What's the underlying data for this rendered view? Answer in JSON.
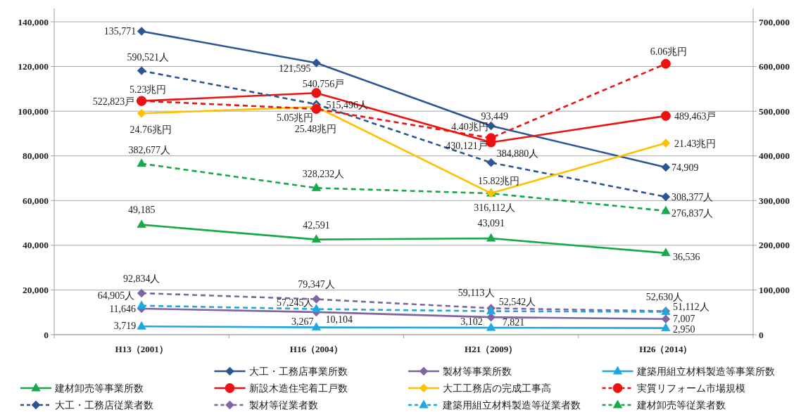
{
  "chart_data": [
    {
      "type": "line",
      "categories": [
        "H13（2001）",
        "H16（2004）",
        "H21（2009）",
        "H26（2014）"
      ],
      "ylim": [
        0,
        140000
      ],
      "yticks": [
        0,
        {
          "value": 20000,
          "label": "20,000"
        },
        {
          "value": 40000,
          "label": "40,000"
        },
        {
          "value": 60000,
          "label": "60,000"
        },
        {
          "value": 80000,
          "label": "80,000"
        },
        {
          "value": 100000,
          "label": "100,000"
        },
        {
          "value": 120000,
          "label": "120,000"
        },
        {
          "value": 140000,
          "label": "140,000"
        }
      ],
      "y2lim": [
        0,
        700000
      ],
      "y2ticks": [
        0,
        {
          "value": 100000,
          "label": "100,000"
        },
        {
          "value": 200000,
          "label": "200,000"
        },
        {
          "value": 300000,
          "label": "300,000"
        },
        {
          "value": 400000,
          "label": "400,000"
        },
        {
          "value": 500000,
          "label": "500,000"
        },
        {
          "value": 600000,
          "label": "600,000"
        },
        {
          "value": 700000,
          "label": "700,000"
        }
      ],
      "grid": "y",
      "legend": "bottom",
      "series": [
        {
          "name": "大工・工務店事業所数",
          "color": "#2c5593",
          "values": [
            135771,
            121595,
            93449,
            74909
          ],
          "value_labels": [
            "135,771",
            "121,595",
            "93,449",
            "74,909"
          ],
          "marker": "diamond",
          "line_style": "solid"
        },
        {
          "name": "製材等事業所数",
          "color": "#8064a2",
          "values": [
            11646,
            10104,
            7821,
            7007
          ],
          "value_labels": [
            "11,646",
            "10,104",
            "7,821",
            "7,007"
          ],
          "marker": "diamond",
          "line_style": "solid"
        },
        {
          "name": "建築用組立材料製造等事業所数",
          "color": "#1fa8e0",
          "values": [
            3719,
            3267,
            3102,
            2950
          ],
          "value_labels": [
            "3,719",
            "3,267",
            "3,102",
            "2,950"
          ],
          "marker": "triangle",
          "line_style": "solid"
        },
        {
          "name": "建材卸売等事業所数",
          "color": "#17a84a",
          "values": [
            49185,
            42591,
            43091,
            36536
          ],
          "value_labels": [
            "49,185",
            "42,591",
            "43,091",
            "36,536"
          ],
          "marker": "triangle",
          "line_style": "solid"
        },
        {
          "name": "新設木造住宅着工戸数",
          "color": "#ee1111",
          "axis": "y2",
          "values": [
            522823,
            540756,
            430121,
            489463
          ],
          "value_labels": [
            "522,823戸",
            "540,756戸",
            "430,121戸",
            "489,463戸"
          ],
          "marker": "circle",
          "line_style": "solid"
        },
        {
          "name": "大工・工務店従業者数",
          "color": "#2c5593",
          "axis": "y2",
          "values": [
            590521,
            515496,
            384880,
            308377
          ],
          "value_labels": [
            "590,521人",
            "515,496人",
            "384,880人",
            "308,377人"
          ],
          "marker": "diamond",
          "line_style": "dashed"
        },
        {
          "name": "製材等従業者数",
          "color": "#8064a2",
          "axis": "y2",
          "values": [
            92834,
            79347,
            59113,
            52630
          ],
          "value_labels": [
            "92,834人",
            "79,347人",
            "59,113人",
            "52,630人"
          ],
          "marker": "diamond",
          "line_style": "dashed"
        },
        {
          "name": "建築用組立材料製造等従業者数",
          "color": "#1fa8e0",
          "axis": "y2",
          "values": [
            64905,
            57245,
            52542,
            51112
          ],
          "value_labels": [
            "64,905人",
            "57,245人",
            "52,542人",
            "51,112人"
          ],
          "marker": "triangle",
          "line_style": "dashed"
        },
        {
          "name": "建材卸売等従業者数",
          "color": "#17a84a",
          "axis": "y2",
          "values": [
            382677,
            328232,
            316112,
            276837
          ],
          "value_labels": [
            "382,677人",
            "328,232人",
            "316,112人",
            "276,837人"
          ],
          "marker": "triangle",
          "line_style": "dashed"
        }
      ]
    },
    {
      "type": "line",
      "categories": [
        null,
        null,
        null,
        null
      ],
      "legend": "bottom",
      "series": [
        {
          "name": "大工工務店の完成工事高",
          "color": "#ffc000",
          "values": [
            24.76,
            25.48,
            15.82,
            21.43
          ],
          "value_labels": [
            "24.76兆円",
            "25.48兆円",
            "15.82兆円",
            "21.43兆円"
          ],
          "marker": "diamond",
          "line_style": "solid"
        }
      ]
    },
    {
      "type": "line",
      "categories": [
        null,
        null,
        null,
        null
      ],
      "legend": "bottom",
      "series": [
        {
          "name": "実質リフォーム市場規模",
          "color": "#ee1111",
          "values": [
            5.23,
            5.05,
            4.4,
            6.06
          ],
          "value_labels": [
            "5.23兆円",
            "5.05兆円",
            "4.40兆円",
            "6.06兆円"
          ],
          "marker": "circle",
          "line_style": "dashed"
        }
      ]
    }
  ]
}
